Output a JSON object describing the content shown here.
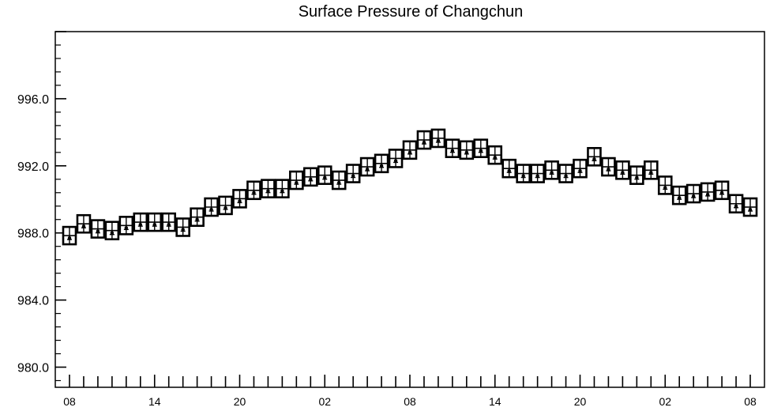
{
  "chart_data": {
    "type": "box",
    "title": "Surface Pressure of Changchun",
    "xlabel": "",
    "ylabel": "",
    "ylim": [
      978.8,
      1000.0
    ],
    "y_ticks": [
      "980.0",
      "984.0",
      "988.0",
      "992.0",
      "996.0"
    ],
    "x_tick_labels": [
      "08",
      "14",
      "20",
      "02",
      "08",
      "14",
      "20",
      "02",
      "08"
    ],
    "grid": false,
    "values": [
      987.7,
      988.4,
      988.1,
      988.0,
      988.3,
      988.5,
      988.5,
      988.5,
      988.2,
      988.8,
      989.4,
      989.5,
      989.9,
      990.4,
      990.5,
      990.5,
      991.0,
      991.2,
      991.3,
      991.0,
      991.4,
      991.8,
      992.0,
      992.3,
      992.8,
      993.4,
      993.5,
      992.9,
      992.8,
      992.9,
      992.5,
      991.7,
      991.4,
      991.4,
      991.6,
      991.4,
      991.7,
      992.4,
      991.8,
      991.6,
      991.3,
      991.6,
      990.7,
      990.1,
      990.2,
      990.3,
      990.4,
      989.6,
      989.4
    ],
    "box_style": "black outlined boxes with median line and whiskers"
  }
}
